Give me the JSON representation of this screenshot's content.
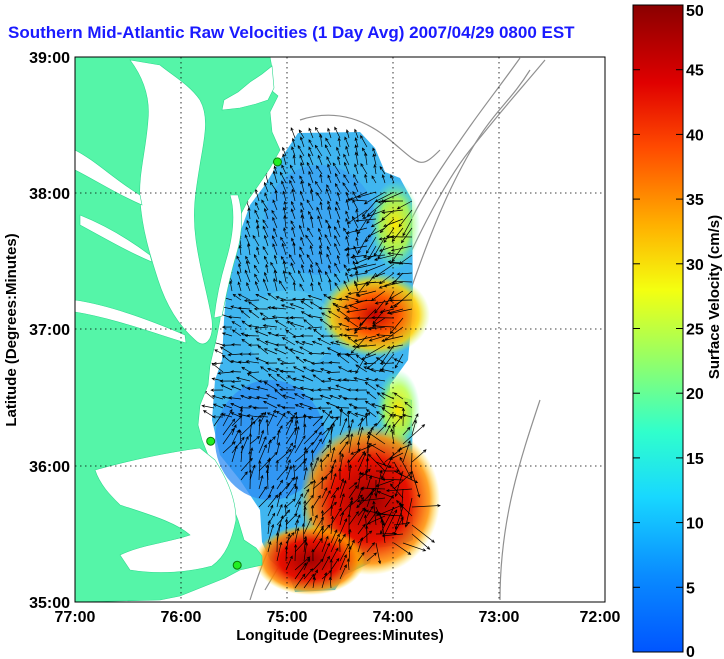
{
  "title": "Southern Mid-Atlantic Raw Velocities (1 Day Avg) 2007/04/29 0800 EST",
  "map": {
    "xlabel": "Longitude (Degrees:Minutes)",
    "ylabel": "Latitude (Degrees:Minutes)",
    "lon_range": [
      -77,
      -72
    ],
    "lat_range": [
      35,
      39
    ],
    "x_ticks": [
      "77:00",
      "76:00",
      "75:00",
      "74:00",
      "73:00",
      "72:00"
    ],
    "y_ticks": [
      "39:00",
      "38:00",
      "37:00",
      "36:00",
      "35:00"
    ],
    "grid": "dotted",
    "land_color": "#55f5a8",
    "bathymetry_contour_color": "#909090",
    "stations": [
      {
        "lon": -75.09,
        "lat": 38.23
      },
      {
        "lon": -75.72,
        "lat": 36.18
      },
      {
        "lon": -75.47,
        "lat": 35.27
      }
    ]
  },
  "colorbar": {
    "label": "Surface Velocity (cm/s)",
    "min": 0,
    "max": 50,
    "ticks": [
      "50",
      "45",
      "40",
      "35",
      "30",
      "25",
      "20",
      "15",
      "10",
      "5",
      "0"
    ],
    "colormap": "jet"
  }
}
